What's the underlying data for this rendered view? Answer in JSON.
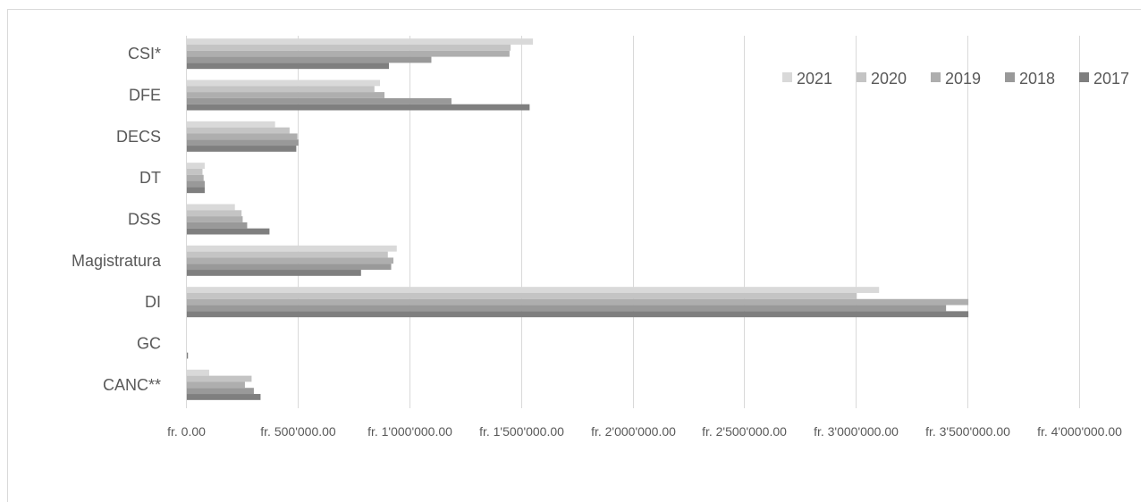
{
  "chart_data": {
    "type": "bar",
    "orientation": "horizontal",
    "categories": [
      "CSI*",
      "DFE",
      "DECS",
      "DT",
      "DSS",
      "Magistratura",
      "DI",
      "GC",
      "CANC**"
    ],
    "series": [
      {
        "name": "2021",
        "color": "#d9d9d9",
        "values": [
          1550000,
          865000,
          395000,
          80000,
          215000,
          940000,
          3100000,
          0,
          100000
        ]
      },
      {
        "name": "2020",
        "color": "#c4c4c4",
        "values": [
          1450000,
          840000,
          460000,
          70000,
          245000,
          900000,
          3000000,
          0,
          290000
        ]
      },
      {
        "name": "2019",
        "color": "#aeaeae",
        "values": [
          1445000,
          885000,
          495000,
          75000,
          250000,
          925000,
          3500000,
          0,
          260000
        ]
      },
      {
        "name": "2018",
        "color": "#999999",
        "values": [
          1095000,
          1185000,
          500000,
          80000,
          270000,
          915000,
          3400000,
          0,
          300000
        ]
      },
      {
        "name": "2017",
        "color": "#7f7f7f",
        "values": [
          905000,
          1535000,
          490000,
          80000,
          370000,
          780000,
          3500000,
          5000,
          330000
        ]
      }
    ],
    "xlim": [
      0,
      4000000
    ],
    "x_ticks": [
      0,
      500000,
      1000000,
      1500000,
      2000000,
      2500000,
      3000000,
      3500000,
      4000000
    ],
    "x_tick_labels": [
      "fr. 0.00",
      "fr. 500'000.00",
      "fr. 1'000'000.00",
      "fr. 1'500'000.00",
      "fr. 2'000'000.00",
      "fr. 2'500'000.00",
      "fr. 3'000'000.00",
      "fr. 3'500'000.00",
      "fr. 4'000'000.00"
    ],
    "grid": "vertical",
    "legend_position": "top-right",
    "title": "",
    "xlabel": "",
    "ylabel": ""
  }
}
